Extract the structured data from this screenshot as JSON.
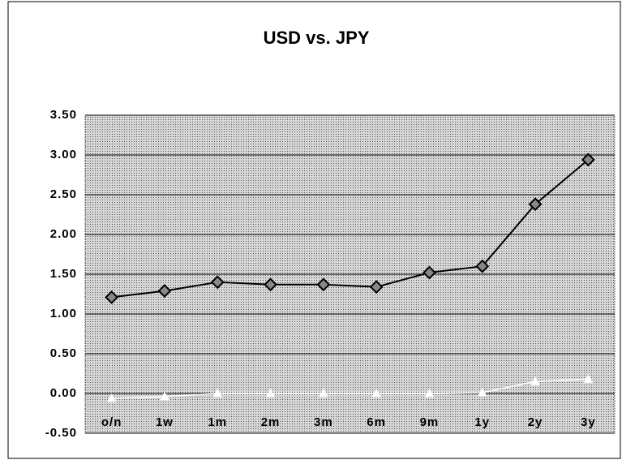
{
  "chart_data": {
    "type": "line",
    "title": "USD vs. JPY",
    "categories": [
      "o/n",
      "1w",
      "1m",
      "2m",
      "3m",
      "6m",
      "9m",
      "1y",
      "2y",
      "3y"
    ],
    "series": [
      {
        "color": "#000000",
        "marker": "diamond",
        "values": [
          1.21,
          1.29,
          1.4,
          1.37,
          1.37,
          1.34,
          1.52,
          1.6,
          2.38,
          2.94
        ]
      },
      {
        "color": "#ffffff",
        "marker": "triangle",
        "values": [
          -0.06,
          -0.04,
          0.0,
          0.0,
          0.0,
          0.0,
          0.0,
          0.01,
          0.15,
          0.18
        ]
      }
    ],
    "ylim": [
      -0.5,
      3.5
    ],
    "yticks": [
      {
        "value": -0.5,
        "label": "-0.50"
      },
      {
        "value": 0,
        "label": "0.00"
      },
      {
        "value": 0.5,
        "label": "0.50"
      },
      {
        "value": 1,
        "label": "1.00"
      },
      {
        "value": 1.5,
        "label": "1.50"
      },
      {
        "value": 2,
        "label": "2.00"
      },
      {
        "value": 2.5,
        "label": "2.50"
      },
      {
        "value": 3,
        "label": "3.00"
      },
      {
        "value": 3.5,
        "label": "3.50"
      }
    ],
    "grid": true
  }
}
